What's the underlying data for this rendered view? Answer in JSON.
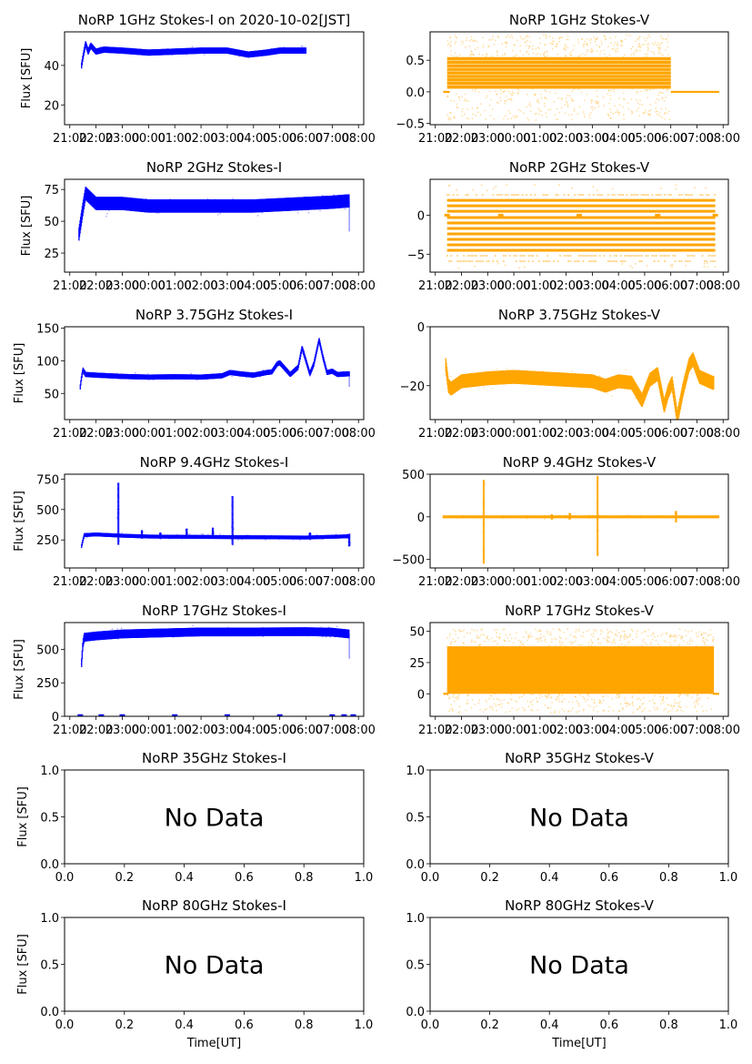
{
  "figure": {
    "colors": {
      "stokes_i": "#0000ff",
      "stokes_v": "#ffa500",
      "axis": "#000000"
    },
    "xlabel_bottom": "Time[UT]"
  },
  "chart_data": [
    {
      "id": "1ghz-i",
      "type": "scatter",
      "row": 0,
      "col": 0,
      "pol": "I",
      "title": "NoRP 1GHz Stokes-I on 2020-10-02[JST]",
      "xlabel": "",
      "ylabel": "Flux [SFU]",
      "xticks": [
        "21:00",
        "22:00",
        "23:00",
        "00:00",
        "01:00",
        "02:00",
        "03:00",
        "04:00",
        "05:00",
        "06:00",
        "07:00",
        "08:00"
      ],
      "xlim_hours": [
        20.8,
        32.2
      ],
      "ylim": [
        10,
        57
      ],
      "yticks": [
        20,
        40
      ],
      "series": {
        "start_h": 21.45,
        "end_h": 30.0,
        "points": [
          [
            21.45,
            40
          ],
          [
            21.5,
            44
          ],
          [
            21.6,
            51
          ],
          [
            21.7,
            47
          ],
          [
            21.8,
            50
          ],
          [
            22.0,
            47
          ],
          [
            22.3,
            48
          ],
          [
            23.0,
            47.5
          ],
          [
            24.0,
            46.5
          ],
          [
            25.0,
            47
          ],
          [
            26.0,
            47.5
          ],
          [
            27.0,
            47.5
          ],
          [
            27.8,
            45.5
          ],
          [
            28.5,
            46.5
          ],
          [
            29.0,
            47.5
          ],
          [
            30.0,
            47.5
          ]
        ],
        "spread": 1.2
      }
    },
    {
      "id": "1ghz-v",
      "type": "scatter",
      "row": 0,
      "col": 1,
      "pol": "V",
      "title": "NoRP 1GHz Stokes-V",
      "xlabel": "",
      "ylabel": "",
      "xticks": [
        "21:00",
        "22:00",
        "23:00",
        "00:00",
        "01:00",
        "02:00",
        "03:00",
        "04:00",
        "05:00",
        "06:00",
        "07:00",
        "08:00"
      ],
      "xlim_hours": [
        20.8,
        32.2
      ],
      "ylim": [
        -0.52,
        0.95
      ],
      "yticks": [
        -0.5,
        0.0,
        0.5
      ],
      "series": {
        "start_h": 21.45,
        "end_h": 30.0,
        "band": [
          0.05,
          0.55
        ],
        "outliers": [
          -0.45,
          0.9
        ],
        "zero_line": [
          [
            21.3,
            21.55
          ],
          [
            30.0,
            31.85
          ]
        ]
      }
    },
    {
      "id": "2ghz-i",
      "type": "scatter",
      "row": 1,
      "col": 0,
      "pol": "I",
      "title": "NoRP 2GHz Stokes-I",
      "xlabel": "",
      "ylabel": "Flux [SFU]",
      "xticks": [
        "21:00",
        "22:00",
        "23:00",
        "00:00",
        "01:00",
        "02:00",
        "03:00",
        "04:00",
        "05:00",
        "06:00",
        "07:00",
        "08:00"
      ],
      "xlim_hours": [
        20.8,
        32.2
      ],
      "ylim": [
        10,
        83
      ],
      "yticks": [
        25,
        50,
        75
      ],
      "series": {
        "start_h": 21.35,
        "end_h": 31.65,
        "points": [
          [
            21.35,
            40
          ],
          [
            21.5,
            60
          ],
          [
            21.6,
            72
          ],
          [
            21.8,
            68
          ],
          [
            22.0,
            64
          ],
          [
            23.0,
            64
          ],
          [
            24.0,
            62
          ],
          [
            26.0,
            62
          ],
          [
            28.0,
            62
          ],
          [
            30.0,
            64
          ],
          [
            31.0,
            65
          ],
          [
            31.6,
            66
          ]
        ],
        "spread": 4,
        "end_dip": 42
      }
    },
    {
      "id": "2ghz-v",
      "type": "scatter",
      "row": 1,
      "col": 1,
      "pol": "V",
      "title": "NoRP 2GHz Stokes-V",
      "xlabel": "",
      "ylabel": "",
      "xticks": [
        "21:00",
        "22:00",
        "23:00",
        "00:00",
        "01:00",
        "02:00",
        "03:00",
        "04:00",
        "05:00",
        "06:00",
        "07:00",
        "08:00"
      ],
      "xlim_hours": [
        20.8,
        32.2
      ],
      "ylim": [
        -7.3,
        4.6
      ],
      "yticks": [
        -5,
        0
      ],
      "series": {
        "start_h": 21.45,
        "end_h": 31.7,
        "levels": [
          1.9,
          1.2,
          0.5,
          -0.3,
          -1.0,
          -1.7,
          -2.4,
          -3.1,
          -3.8,
          -4.5
        ],
        "faint_levels": [
          2.6,
          -5.2,
          -5.9
        ],
        "outliers": [
          -6.8,
          3.9
        ]
      }
    },
    {
      "id": "3.75ghz-i",
      "type": "scatter",
      "row": 2,
      "col": 0,
      "pol": "I",
      "title": "NoRP 3.75GHz Stokes-I",
      "xlabel": "",
      "ylabel": "Flux [SFU]",
      "xticks": [
        "21:00",
        "22:00",
        "23:00",
        "00:00",
        "01:00",
        "02:00",
        "03:00",
        "04:00",
        "05:00",
        "06:00",
        "07:00",
        "08:00"
      ],
      "xlim_hours": [
        20.8,
        32.2
      ],
      "ylim": [
        10,
        152
      ],
      "yticks": [
        50,
        100,
        150
      ],
      "series": {
        "start_h": 21.4,
        "end_h": 31.65,
        "points": [
          [
            21.4,
            60
          ],
          [
            21.45,
            75
          ],
          [
            21.5,
            86
          ],
          [
            21.6,
            79
          ],
          [
            22.0,
            78
          ],
          [
            23.0,
            76
          ],
          [
            24.0,
            75
          ],
          [
            25.0,
            75.5
          ],
          [
            26.0,
            75
          ],
          [
            26.8,
            77
          ],
          [
            27.1,
            82
          ],
          [
            27.5,
            80
          ],
          [
            28.0,
            78
          ],
          [
            28.5,
            82
          ],
          [
            28.7,
            83
          ],
          [
            28.9,
            95
          ],
          [
            29.0,
            97
          ],
          [
            29.2,
            88
          ],
          [
            29.4,
            79
          ],
          [
            29.7,
            90
          ],
          [
            29.85,
            120
          ],
          [
            30.0,
            100
          ],
          [
            30.15,
            80
          ],
          [
            30.3,
            95
          ],
          [
            30.5,
            132
          ],
          [
            30.65,
            105
          ],
          [
            30.8,
            82
          ],
          [
            31.0,
            84
          ],
          [
            31.2,
            79
          ],
          [
            31.6,
            80
          ]
        ],
        "spread": 3,
        "end_dip": 60
      }
    },
    {
      "id": "3.75ghz-v",
      "type": "scatter",
      "row": 2,
      "col": 1,
      "pol": "V",
      "title": "NoRP 3.75GHz Stokes-V",
      "xlabel": "",
      "ylabel": "",
      "xticks": [
        "21:00",
        "22:00",
        "23:00",
        "00:00",
        "01:00",
        "02:00",
        "03:00",
        "04:00",
        "05:00",
        "06:00",
        "07:00",
        "08:00"
      ],
      "xlim_hours": [
        20.8,
        32.2
      ],
      "ylim": [
        -31.5,
        0
      ],
      "yticks": [
        -20,
        0
      ],
      "series": {
        "start_h": 21.4,
        "end_h": 31.65,
        "points": [
          [
            21.4,
            -13
          ],
          [
            21.5,
            -20
          ],
          [
            21.6,
            -21
          ],
          [
            22.0,
            -18.5
          ],
          [
            23.0,
            -17.5
          ],
          [
            24.0,
            -17
          ],
          [
            25.0,
            -17.5
          ],
          [
            26.0,
            -18
          ],
          [
            27.0,
            -18.5
          ],
          [
            27.5,
            -20
          ],
          [
            28.0,
            -18.5
          ],
          [
            28.5,
            -19
          ],
          [
            28.9,
            -25
          ],
          [
            29.2,
            -18
          ],
          [
            29.5,
            -16
          ],
          [
            29.75,
            -27
          ],
          [
            29.9,
            -22
          ],
          [
            30.05,
            -19
          ],
          [
            30.25,
            -31
          ],
          [
            30.45,
            -22
          ],
          [
            30.7,
            -13
          ],
          [
            30.85,
            -11
          ],
          [
            31.1,
            -17
          ],
          [
            31.6,
            -19
          ]
        ],
        "spread": 1.8,
        "zero_marks_h": [
          21.45,
          23.5,
          26.5,
          29.5,
          31.7
        ]
      }
    },
    {
      "id": "9.4ghz-i",
      "type": "scatter",
      "row": 3,
      "col": 0,
      "pol": "I",
      "title": "NoRP 9.4GHz Stokes-I",
      "xlabel": "",
      "ylabel": "Flux [SFU]",
      "xticks": [
        "21:00",
        "22:00",
        "23:00",
        "00:00",
        "01:00",
        "02:00",
        "03:00",
        "04:00",
        "05:00",
        "06:00",
        "07:00",
        "08:00"
      ],
      "xlim_hours": [
        20.8,
        32.2
      ],
      "ylim": [
        20,
        790
      ],
      "yticks": [
        250,
        500,
        750
      ],
      "series": {
        "start_h": 21.45,
        "end_h": 31.65,
        "points": [
          [
            21.45,
            200
          ],
          [
            21.55,
            290
          ],
          [
            22.0,
            295
          ],
          [
            23.0,
            285
          ],
          [
            24.0,
            278
          ],
          [
            26.0,
            275
          ],
          [
            28.0,
            272
          ],
          [
            30.0,
            270
          ],
          [
            31.65,
            280
          ]
        ],
        "spread": 12,
        "spikes": [
          [
            22.85,
            720,
            210
          ],
          [
            23.75,
            330,
            260
          ],
          [
            24.45,
            310,
            260
          ],
          [
            25.45,
            340,
            260
          ],
          [
            26.45,
            350,
            260
          ],
          [
            27.2,
            610,
            210
          ],
          [
            30.15,
            310,
            250
          ],
          [
            31.65,
            300,
            200
          ]
        ]
      }
    },
    {
      "id": "9.4ghz-v",
      "type": "scatter",
      "row": 3,
      "col": 1,
      "pol": "V",
      "title": "NoRP 9.4GHz Stokes-V",
      "xlabel": "",
      "ylabel": "",
      "xticks": [
        "21:00",
        "22:00",
        "23:00",
        "00:00",
        "01:00",
        "02:00",
        "03:00",
        "04:00",
        "05:00",
        "06:00",
        "07:00",
        "08:00"
      ],
      "xlim_hours": [
        20.8,
        32.2
      ],
      "ylim": [
        -600,
        500
      ],
      "yticks": [
        -500,
        0,
        500
      ],
      "series": {
        "start_h": 21.3,
        "end_h": 31.85,
        "points": [
          [
            21.3,
            0
          ],
          [
            31.85,
            0
          ]
        ],
        "spread": 12,
        "spikes": [
          [
            22.85,
            430,
            -550
          ],
          [
            27.2,
            480,
            -460
          ],
          [
            30.2,
            70,
            -60
          ],
          [
            26.15,
            40,
            -30
          ],
          [
            25.45,
            30,
            -30
          ]
        ]
      }
    },
    {
      "id": "17ghz-i",
      "type": "scatter",
      "row": 4,
      "col": 0,
      "pol": "I",
      "title": "NoRP 17GHz Stokes-I",
      "xlabel": "",
      "ylabel": "Flux [SFU]",
      "xticks": [
        "21:00",
        "22:00",
        "23:00",
        "00:00",
        "01:00",
        "02:00",
        "03:00",
        "04:00",
        "05:00",
        "06:00",
        "07:00",
        "08:00"
      ],
      "xlim_hours": [
        20.8,
        32.2
      ],
      "ylim": [
        0,
        700
      ],
      "yticks": [
        0,
        250,
        500
      ],
      "series": {
        "start_h": 21.45,
        "end_h": 31.65,
        "points": [
          [
            21.45,
            400
          ],
          [
            21.5,
            540
          ],
          [
            21.55,
            590
          ],
          [
            22.0,
            600
          ],
          [
            23.0,
            615
          ],
          [
            24.0,
            620
          ],
          [
            25.0,
            625
          ],
          [
            26.0,
            630
          ],
          [
            28.0,
            630
          ],
          [
            30.0,
            632
          ],
          [
            31.0,
            628
          ],
          [
            31.65,
            615
          ]
        ],
        "spread": 25,
        "end_dip": 430,
        "zero_marks_h": [
          21.4,
          22.2,
          23.0,
          25.0,
          27.0,
          29.0,
          31.0,
          31.45,
          31.8
        ]
      }
    },
    {
      "id": "17ghz-v",
      "type": "scatter",
      "row": 4,
      "col": 1,
      "pol": "V",
      "title": "NoRP 17GHz Stokes-V",
      "xlabel": "",
      "ylabel": "",
      "xticks": [
        "21:00",
        "22:00",
        "23:00",
        "00:00",
        "01:00",
        "02:00",
        "03:00",
        "04:00",
        "05:00",
        "06:00",
        "07:00",
        "08:00"
      ],
      "xlim_hours": [
        20.8,
        32.2
      ],
      "ylim": [
        -18,
        57
      ],
      "yticks": [
        0,
        25,
        50
      ],
      "series": {
        "start_h": 21.45,
        "end_h": 31.65,
        "band": [
          0,
          38
        ],
        "outliers": [
          -15,
          52
        ],
        "zero_line": [
          [
            21.3,
            21.5
          ],
          [
            31.6,
            31.85
          ]
        ]
      }
    },
    {
      "id": "35ghz-i",
      "type": "empty",
      "row": 5,
      "col": 0,
      "title": "NoRP 35GHz Stokes-I",
      "ylabel": "Flux [SFU]",
      "xlabel": "",
      "xticks": [
        "0.0",
        "0.2",
        "0.4",
        "0.6",
        "0.8",
        "1.0"
      ],
      "yticks": [
        "0.0",
        "0.5",
        "1.0"
      ],
      "message": "No Data"
    },
    {
      "id": "35ghz-v",
      "type": "empty",
      "row": 5,
      "col": 1,
      "title": "NoRP 35GHz Stokes-V",
      "ylabel": "",
      "xlabel": "",
      "xticks": [
        "0.0",
        "0.2",
        "0.4",
        "0.6",
        "0.8",
        "1.0"
      ],
      "yticks": [
        "0.0",
        "0.5",
        "1.0"
      ],
      "message": "No Data"
    },
    {
      "id": "80ghz-i",
      "type": "empty",
      "row": 6,
      "col": 0,
      "title": "NoRP 80GHz Stokes-I",
      "ylabel": "Flux [SFU]",
      "xlabel": "Time[UT]",
      "xticks": [
        "0.0",
        "0.2",
        "0.4",
        "0.6",
        "0.8",
        "1.0"
      ],
      "yticks": [
        "0.0",
        "0.5",
        "1.0"
      ],
      "message": "No Data"
    },
    {
      "id": "80ghz-v",
      "type": "empty",
      "row": 6,
      "col": 1,
      "title": "NoRP 80GHz Stokes-V",
      "ylabel": "",
      "xlabel": "Time[UT]",
      "xticks": [
        "0.0",
        "0.2",
        "0.4",
        "0.6",
        "0.8",
        "1.0"
      ],
      "yticks": [
        "0.0",
        "0.5",
        "1.0"
      ],
      "message": "No Data"
    }
  ]
}
